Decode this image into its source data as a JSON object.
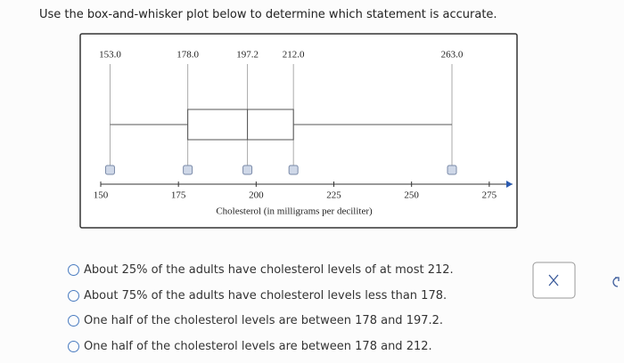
{
  "question": "Use the box-and-whisker plot below to determine which statement is accurate.",
  "chart_data": {
    "type": "box",
    "values": [
      153,
      178,
      197.2,
      212,
      263
    ],
    "value_labels": [
      "153.0",
      "178.0",
      "197.2",
      "212.0",
      "263.0"
    ],
    "xlabel": "Cholesterol (in milligrams per deciliter)",
    "xlim": [
      150,
      282.5
    ],
    "xticks": [
      150,
      175,
      200,
      225,
      250,
      275
    ],
    "color": "#555"
  },
  "options": [
    "About 25% of the adults have cholesterol levels of at most 212.",
    "About 75% of the adults have cholesterol levels less than 178.",
    "One half of the cholesterol levels are between 178 and 197.2.",
    "One half of the cholesterol levels are between 178 and 212."
  ]
}
